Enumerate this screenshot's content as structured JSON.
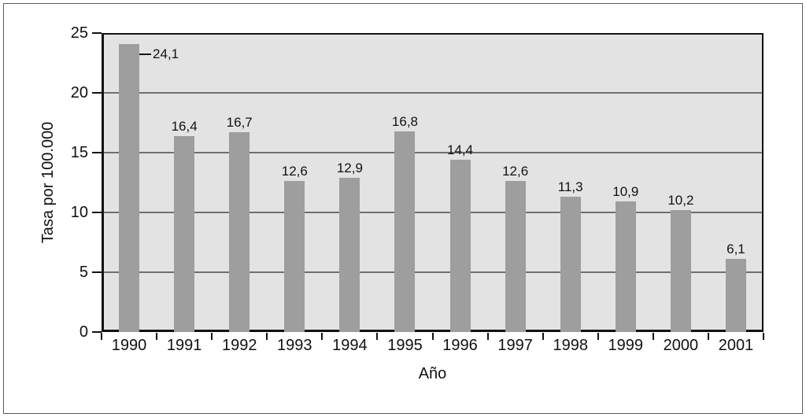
{
  "chart_data": {
    "type": "bar",
    "title": "",
    "xlabel": "Año",
    "ylabel": "Tasa por 100.000",
    "categories": [
      "1990",
      "1991",
      "1992",
      "1993",
      "1994",
      "1995",
      "1996",
      "1997",
      "1998",
      "1999",
      "2000",
      "2001"
    ],
    "values": [
      24.1,
      16.4,
      16.7,
      12.6,
      12.9,
      16.8,
      14.4,
      12.6,
      11.3,
      10.9,
      10.2,
      6.1
    ],
    "value_labels": [
      "24,1",
      "16,4",
      "16,7",
      "12,6",
      "12,9",
      "16,8",
      "14,4",
      "12,6",
      "11,3",
      "10,9",
      "10,2",
      "6,1"
    ],
    "ylim": [
      0,
      25
    ],
    "yticks": [
      0,
      5,
      10,
      15,
      20,
      25
    ],
    "ytick_labels": [
      "0",
      "5",
      "10",
      "15",
      "20",
      "25"
    ],
    "grid": "horizontal",
    "legend": "none",
    "first_bar_label_style": "leader-line-right",
    "colors": {
      "bar_fill": "#9e9e9e",
      "bar_border": "#121212",
      "plot_bg": "#e3e3e3",
      "gridline": "#6f6f6f",
      "axis": "#121212",
      "frame_border": "#5a5a5a",
      "page_bg": "#ffffff",
      "text": "#111111"
    }
  }
}
